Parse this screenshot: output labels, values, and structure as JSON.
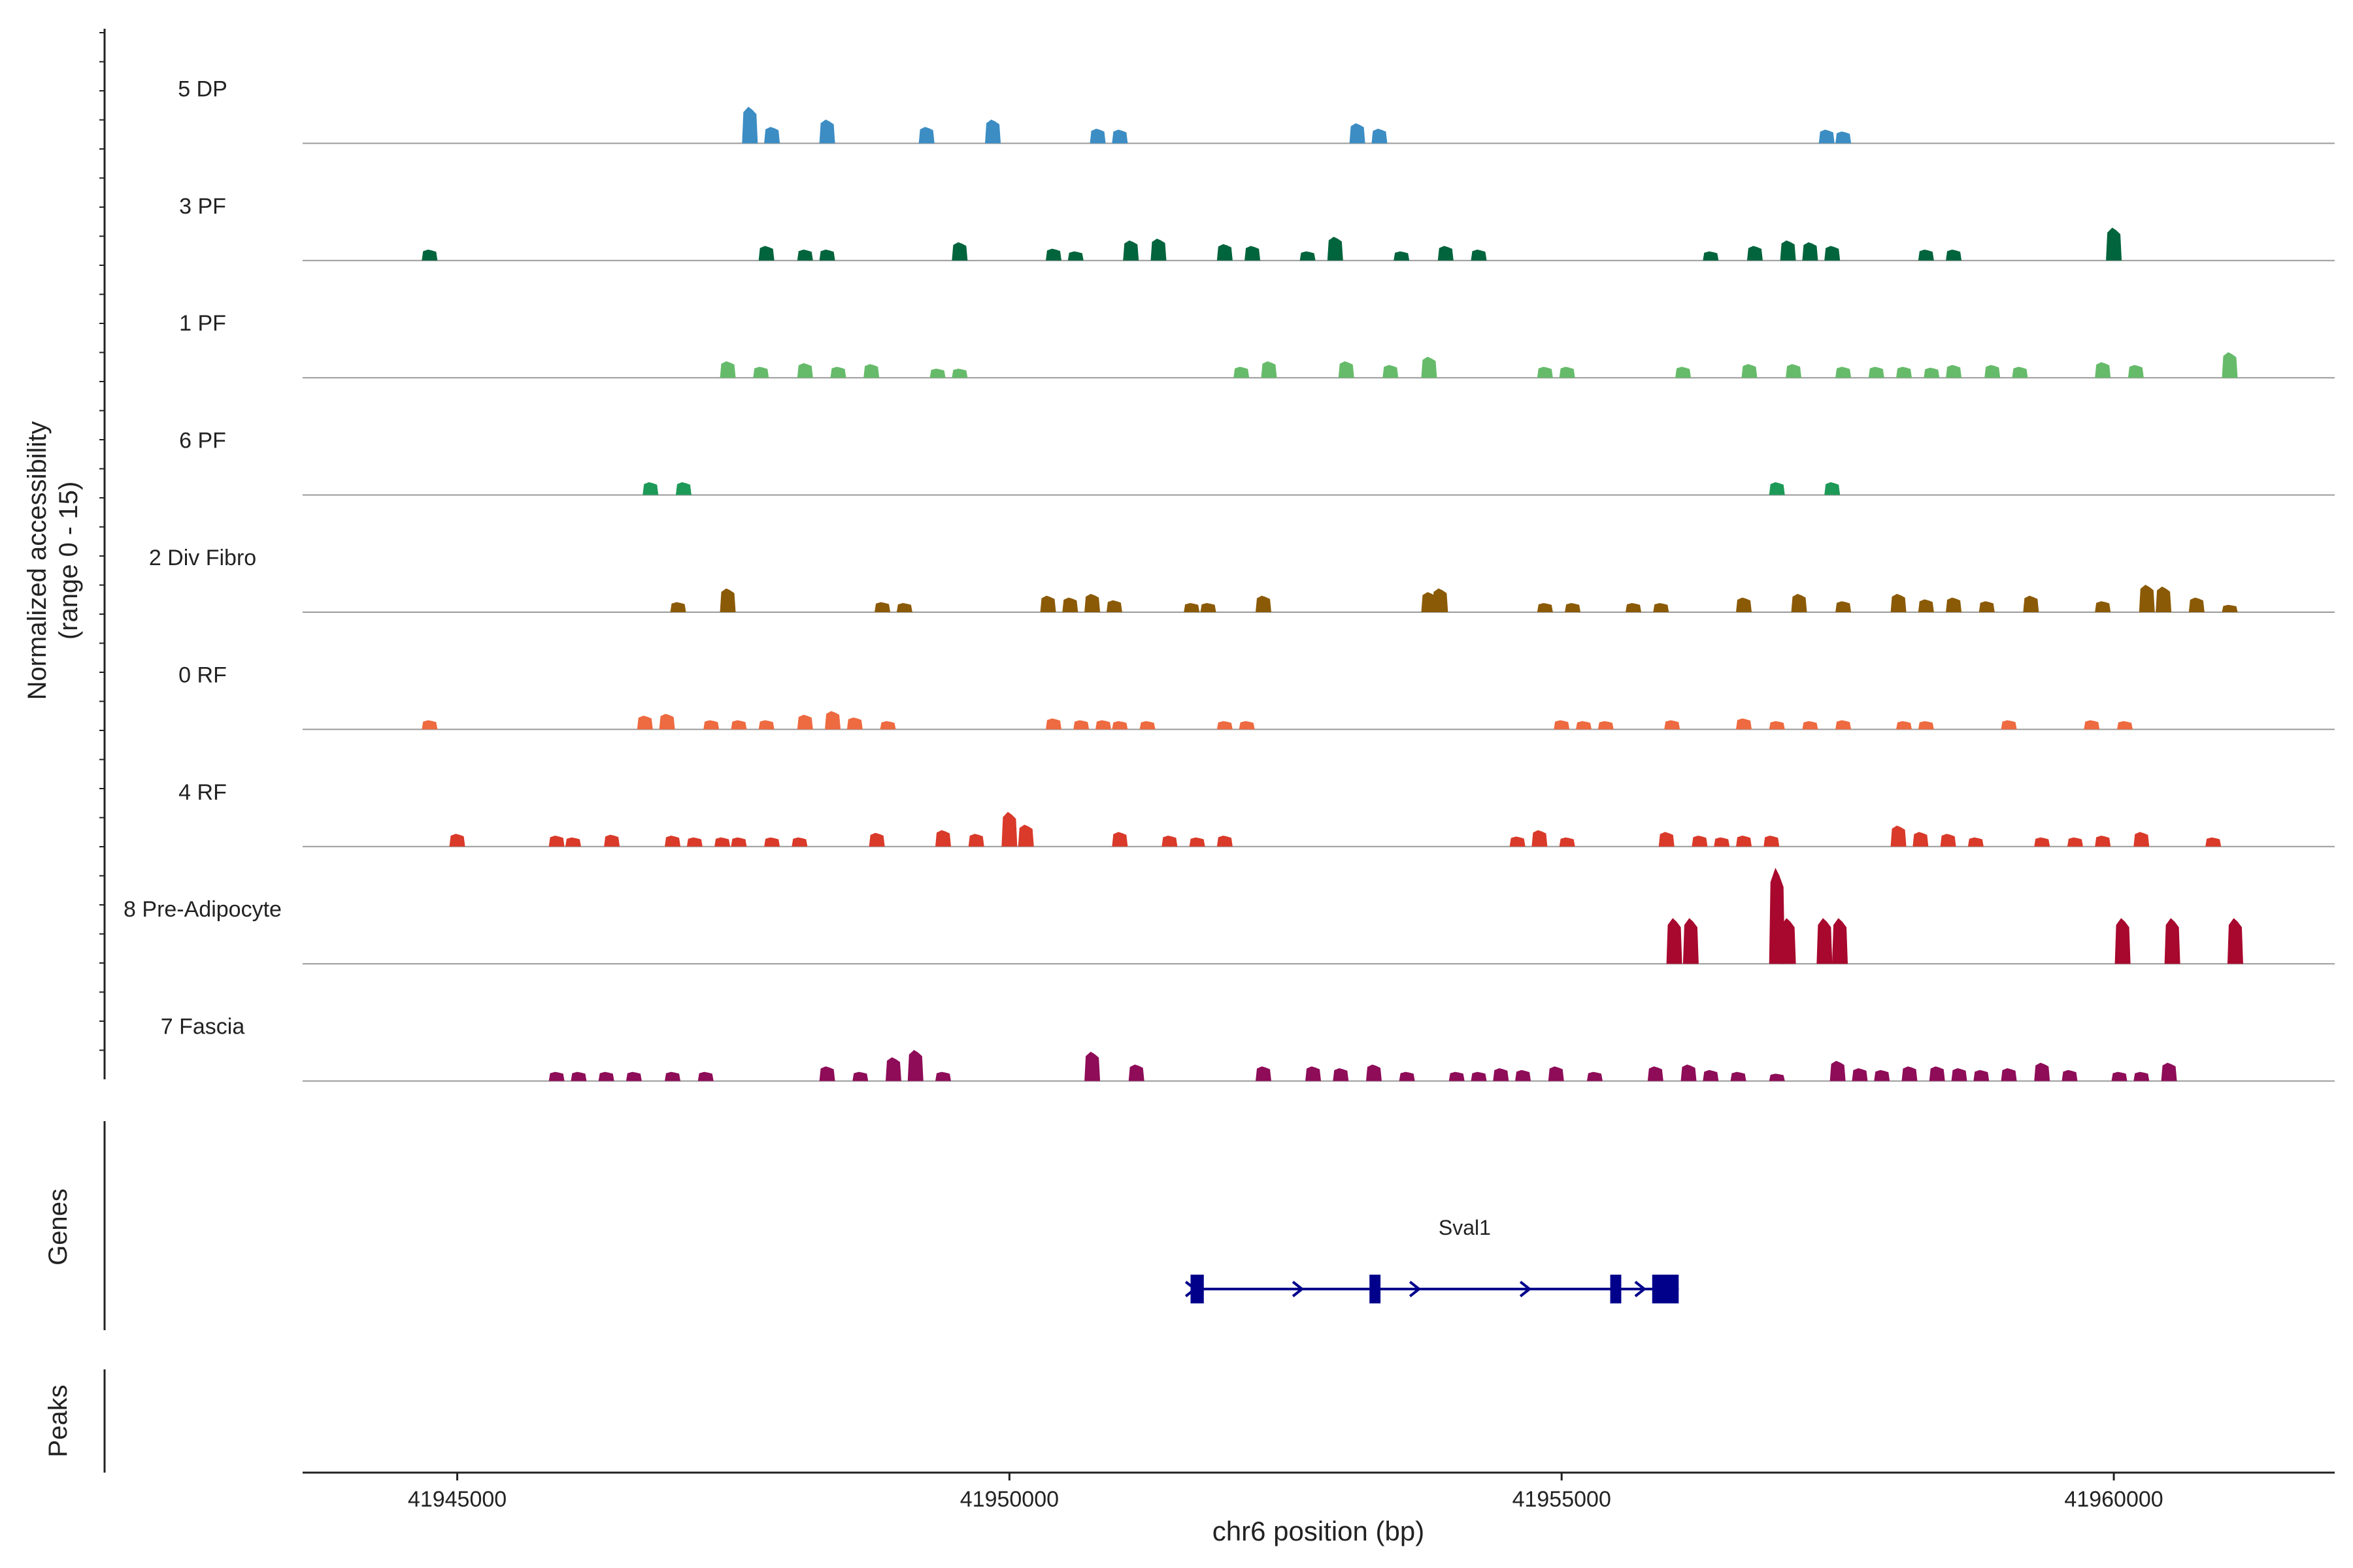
{
  "chart_data": {
    "type": "area",
    "subtype": "genome-coverage-track",
    "y_title_line1": "Normalized accessibility",
    "y_title_line2": "(range 0 - 15)",
    "y_range": [
      0,
      15
    ],
    "xlabel": "chr6 position (bp)",
    "xlim": [
      41943600,
      41962000
    ],
    "x_ticks": [
      41945000,
      41950000,
      41955000,
      41960000
    ],
    "x_tick_labels": [
      "41945000",
      "41950000",
      "41955000",
      "41960000"
    ],
    "genes_label": "Genes",
    "peaks_label": "Peaks",
    "gene": {
      "name": "Sval1",
      "start": 41951640,
      "end": 41956060,
      "color": "#00008B",
      "exons": [
        [
          41951640,
          41951760
        ],
        [
          41953260,
          41953360
        ],
        [
          41955440,
          41955540
        ],
        [
          41955820,
          41956060
        ]
      ],
      "arrows": [
        41951650,
        41952620,
        41953680,
        41954680,
        41955720
      ]
    },
    "tracks": [
      {
        "name": "5 DP",
        "color": "#3C8DC4",
        "peaks": [
          [
            41947650,
            4.0
          ],
          [
            41947850,
            1.8
          ],
          [
            41948350,
            2.6
          ],
          [
            41949250,
            1.8
          ],
          [
            41949850,
            2.6
          ],
          [
            41950800,
            1.6
          ],
          [
            41951000,
            1.5
          ],
          [
            41953150,
            2.2
          ],
          [
            41953350,
            1.6
          ],
          [
            41957400,
            1.5
          ],
          [
            41957550,
            1.3
          ]
        ]
      },
      {
        "name": "3 PF",
        "color": "#00643C",
        "peaks": [
          [
            41944750,
            1.2
          ],
          [
            41947800,
            1.6
          ],
          [
            41948150,
            1.2
          ],
          [
            41948350,
            1.2
          ],
          [
            41949550,
            2.0
          ],
          [
            41950400,
            1.3
          ],
          [
            41950600,
            1.0
          ],
          [
            41951100,
            2.2
          ],
          [
            41951350,
            2.4
          ],
          [
            41951950,
            1.8
          ],
          [
            41952200,
            1.6
          ],
          [
            41952700,
            1.0
          ],
          [
            41952950,
            2.6
          ],
          [
            41953550,
            1.0
          ],
          [
            41953950,
            1.6
          ],
          [
            41954250,
            1.2
          ],
          [
            41956350,
            1.0
          ],
          [
            41956750,
            1.6
          ],
          [
            41957050,
            2.2
          ],
          [
            41957250,
            2.0
          ],
          [
            41957450,
            1.6
          ],
          [
            41958300,
            1.2
          ],
          [
            41958550,
            1.2
          ],
          [
            41960000,
            3.6
          ]
        ]
      },
      {
        "name": "1 PF",
        "color": "#66BB6A",
        "peaks": [
          [
            41947450,
            1.8
          ],
          [
            41947750,
            1.2
          ],
          [
            41948150,
            1.6
          ],
          [
            41948450,
            1.2
          ],
          [
            41948750,
            1.5
          ],
          [
            41949350,
            1.0
          ],
          [
            41949550,
            1.0
          ],
          [
            41952100,
            1.2
          ],
          [
            41952350,
            1.8
          ],
          [
            41953050,
            1.8
          ],
          [
            41953450,
            1.4
          ],
          [
            41953800,
            2.3
          ],
          [
            41954850,
            1.2
          ],
          [
            41955050,
            1.2
          ],
          [
            41956100,
            1.2
          ],
          [
            41956700,
            1.5
          ],
          [
            41957100,
            1.5
          ],
          [
            41957550,
            1.2
          ],
          [
            41957850,
            1.2
          ],
          [
            41958100,
            1.2
          ],
          [
            41958350,
            1.1
          ],
          [
            41958550,
            1.4
          ],
          [
            41958900,
            1.4
          ],
          [
            41959150,
            1.2
          ],
          [
            41959900,
            1.7
          ],
          [
            41960200,
            1.4
          ],
          [
            41961050,
            2.8
          ]
        ]
      },
      {
        "name": "6 PF",
        "color": "#1E9A58",
        "peaks": [
          [
            41946750,
            1.4
          ],
          [
            41947050,
            1.4
          ],
          [
            41956950,
            1.4
          ],
          [
            41957450,
            1.4
          ]
        ]
      },
      {
        "name": "2 Div Fibro",
        "color": "#8B5A06",
        "peaks": [
          [
            41947000,
            1.1
          ],
          [
            41947450,
            2.6
          ],
          [
            41948850,
            1.1
          ],
          [
            41949050,
            1.0
          ],
          [
            41950350,
            1.8
          ],
          [
            41950550,
            1.6
          ],
          [
            41950750,
            2.0
          ],
          [
            41950950,
            1.3
          ],
          [
            41951650,
            1.0
          ],
          [
            41951800,
            1.0
          ],
          [
            41952300,
            1.8
          ],
          [
            41953800,
            2.2
          ],
          [
            41953900,
            2.6
          ],
          [
            41954850,
            1.0
          ],
          [
            41955100,
            1.0
          ],
          [
            41955650,
            1.0
          ],
          [
            41955900,
            1.0
          ],
          [
            41956650,
            1.6
          ],
          [
            41957150,
            2.0
          ],
          [
            41957550,
            1.2
          ],
          [
            41958050,
            2.0
          ],
          [
            41958300,
            1.4
          ],
          [
            41958550,
            1.6
          ],
          [
            41958850,
            1.2
          ],
          [
            41959250,
            1.8
          ],
          [
            41959900,
            1.2
          ],
          [
            41960300,
            3.0
          ],
          [
            41960450,
            2.8
          ],
          [
            41960750,
            1.6
          ],
          [
            41961050,
            0.8
          ]
        ]
      },
      {
        "name": "0 RF",
        "color": "#EE6A40",
        "peaks": [
          [
            41944750,
            1.0
          ],
          [
            41946700,
            1.5
          ],
          [
            41946900,
            1.7
          ],
          [
            41947300,
            1.0
          ],
          [
            41947550,
            1.0
          ],
          [
            41947800,
            1.0
          ],
          [
            41948150,
            1.6
          ],
          [
            41948400,
            2.0
          ],
          [
            41948600,
            1.3
          ],
          [
            41948900,
            0.9
          ],
          [
            41950400,
            1.2
          ],
          [
            41950650,
            1.0
          ],
          [
            41950850,
            1.0
          ],
          [
            41951000,
            0.9
          ],
          [
            41951250,
            0.9
          ],
          [
            41951950,
            0.9
          ],
          [
            41952150,
            0.9
          ],
          [
            41955000,
            1.0
          ],
          [
            41955200,
            0.9
          ],
          [
            41955400,
            0.9
          ],
          [
            41956000,
            1.0
          ],
          [
            41956650,
            1.2
          ],
          [
            41956950,
            0.9
          ],
          [
            41957250,
            0.9
          ],
          [
            41957550,
            1.0
          ],
          [
            41958100,
            0.9
          ],
          [
            41958300,
            0.9
          ],
          [
            41959050,
            1.0
          ],
          [
            41959800,
            1.0
          ],
          [
            41960100,
            0.9
          ]
        ]
      },
      {
        "name": "4 RF",
        "color": "#D93A2A",
        "peaks": [
          [
            41945000,
            1.4
          ],
          [
            41945900,
            1.2
          ],
          [
            41946050,
            1.0
          ],
          [
            41946400,
            1.3
          ],
          [
            41946950,
            1.2
          ],
          [
            41947150,
            1.0
          ],
          [
            41947400,
            1.0
          ],
          [
            41947550,
            1.0
          ],
          [
            41947850,
            1.0
          ],
          [
            41948100,
            1.0
          ],
          [
            41948800,
            1.5
          ],
          [
            41949400,
            1.8
          ],
          [
            41949700,
            1.4
          ],
          [
            41950000,
            3.8
          ],
          [
            41950150,
            2.4
          ],
          [
            41951000,
            1.6
          ],
          [
            41951450,
            1.2
          ],
          [
            41951700,
            1.0
          ],
          [
            41951950,
            1.2
          ],
          [
            41954600,
            1.1
          ],
          [
            41954800,
            1.8
          ],
          [
            41955050,
            1.0
          ],
          [
            41955950,
            1.6
          ],
          [
            41956250,
            1.2
          ],
          [
            41956450,
            1.0
          ],
          [
            41956650,
            1.2
          ],
          [
            41956900,
            1.2
          ],
          [
            41958050,
            2.3
          ],
          [
            41958250,
            1.6
          ],
          [
            41958500,
            1.4
          ],
          [
            41958750,
            1.0
          ],
          [
            41959350,
            1.0
          ],
          [
            41959650,
            1.0
          ],
          [
            41959900,
            1.2
          ],
          [
            41960250,
            1.6
          ],
          [
            41960900,
            1.0
          ]
        ]
      },
      {
        "name": "8 Pre-Adipocyte",
        "color": "#A8082E",
        "peaks": [
          [
            41956020,
            5.0
          ],
          [
            41956170,
            5.0
          ],
          [
            41956950,
            10.5
          ],
          [
            41957050,
            5.0
          ],
          [
            41957380,
            5.0
          ],
          [
            41957520,
            5.0
          ],
          [
            41960080,
            5.0
          ],
          [
            41960530,
            5.0
          ],
          [
            41961100,
            5.0
          ]
        ]
      },
      {
        "name": "7 Fascia",
        "color": "#8E0C58",
        "peaks": [
          [
            41945900,
            1.0
          ],
          [
            41946100,
            1.0
          ],
          [
            41946350,
            1.0
          ],
          [
            41946600,
            1.0
          ],
          [
            41946950,
            1.0
          ],
          [
            41947250,
            1.0
          ],
          [
            41948350,
            1.6
          ],
          [
            41948650,
            1.0
          ],
          [
            41948950,
            2.6
          ],
          [
            41949150,
            3.4
          ],
          [
            41949400,
            1.0
          ],
          [
            41950750,
            3.2
          ],
          [
            41951150,
            1.8
          ],
          [
            41952300,
            1.6
          ],
          [
            41952750,
            1.6
          ],
          [
            41953000,
            1.4
          ],
          [
            41953300,
            1.8
          ],
          [
            41953600,
            1.0
          ],
          [
            41954050,
            1.0
          ],
          [
            41954250,
            1.0
          ],
          [
            41954450,
            1.4
          ],
          [
            41954650,
            1.2
          ],
          [
            41954950,
            1.6
          ],
          [
            41955300,
            1.0
          ],
          [
            41955850,
            1.6
          ],
          [
            41956150,
            1.8
          ],
          [
            41956350,
            1.2
          ],
          [
            41956600,
            1.0
          ],
          [
            41956950,
            0.8
          ],
          [
            41957500,
            2.2
          ],
          [
            41957700,
            1.4
          ],
          [
            41957900,
            1.2
          ],
          [
            41958150,
            1.6
          ],
          [
            41958400,
            1.6
          ],
          [
            41958600,
            1.4
          ],
          [
            41958800,
            1.2
          ],
          [
            41959050,
            1.4
          ],
          [
            41959350,
            2.0
          ],
          [
            41959600,
            1.2
          ],
          [
            41960050,
            1.0
          ],
          [
            41960250,
            1.0
          ],
          [
            41960500,
            2.0
          ]
        ]
      }
    ]
  }
}
